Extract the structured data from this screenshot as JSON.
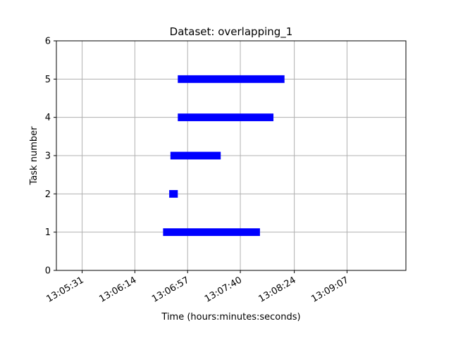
{
  "chart_data": {
    "type": "bar",
    "title": "Dataset: overlapping_1",
    "xlabel": "Time (hours:minutes:seconds)",
    "ylabel": "Task number",
    "grid": true,
    "bar_color": "#0000ff",
    "grid_color": "#b0b0b0",
    "ylim": [
      0,
      6
    ],
    "xlim": [
      "13:05:10",
      "13:09:55"
    ],
    "x_ticks": [
      "13:05:31",
      "13:06:14",
      "13:06:57",
      "13:07:40",
      "13:08:24",
      "13:09:07"
    ],
    "y_ticks": [
      "0",
      "1",
      "2",
      "3",
      "4",
      "5",
      "6"
    ],
    "tasks": [
      {
        "task": 1,
        "start": "13:06:37",
        "end": "13:07:56"
      },
      {
        "task": 2,
        "start": "13:06:42",
        "end": "13:06:49"
      },
      {
        "task": 3,
        "start": "13:06:43",
        "end": "13:07:24"
      },
      {
        "task": 4,
        "start": "13:06:49",
        "end": "13:08:07"
      },
      {
        "task": 5,
        "start": "13:06:49",
        "end": "13:08:16"
      }
    ]
  }
}
